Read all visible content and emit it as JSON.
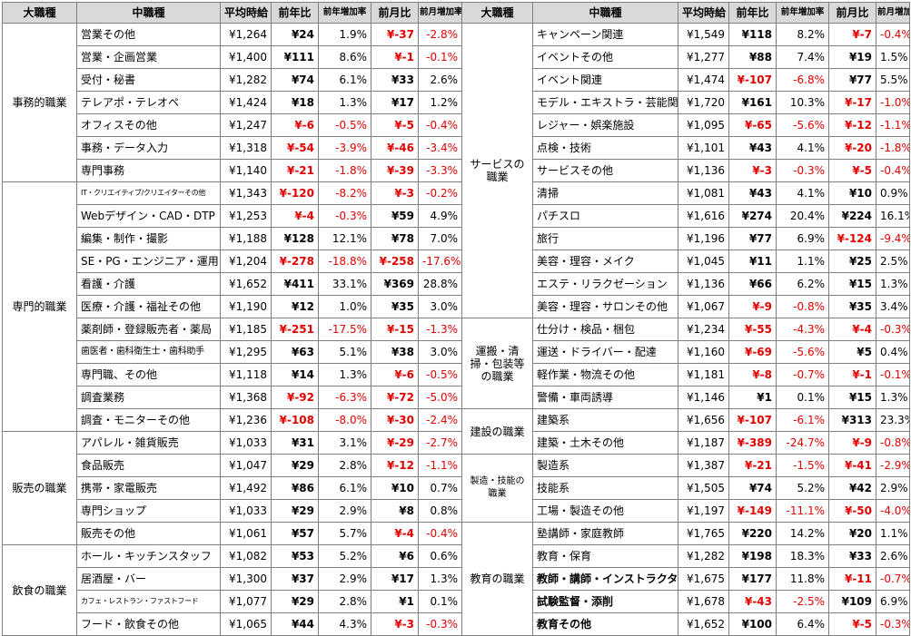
{
  "headers": {
    "major": "大職種",
    "minor": "中職種",
    "avg": "平均時給",
    "yoy": "前年比",
    "yoy_rate": "前年増加率",
    "mom": "前月比",
    "mom_rate": "前月増加率"
  },
  "left_groups": [
    {
      "name": "事務的職業",
      "rows": [
        {
          "sub": "営業その他",
          "avg": "¥1,264",
          "yoy": "¥24",
          "yoy_rate": "1.9%",
          "mom": "¥-37",
          "mom_rate": "-2.8%"
        },
        {
          "sub": "営業・企画営業",
          "avg": "¥1,400",
          "yoy": "¥111",
          "yoy_rate": "8.6%",
          "mom": "¥-1",
          "mom_rate": "-0.1%"
        },
        {
          "sub": "受付・秘書",
          "avg": "¥1,282",
          "yoy": "¥74",
          "yoy_rate": "6.1%",
          "mom": "¥33",
          "mom_rate": "2.6%"
        },
        {
          "sub": "テレアポ・テレオペ",
          "avg": "¥1,424",
          "yoy": "¥18",
          "yoy_rate": "1.3%",
          "mom": "¥17",
          "mom_rate": "1.2%"
        },
        {
          "sub": "オフィスその他",
          "avg": "¥1,247",
          "yoy": "¥-6",
          "yoy_rate": "-0.5%",
          "mom": "¥-5",
          "mom_rate": "-0.4%"
        },
        {
          "sub": "事務・データ入力",
          "avg": "¥1,318",
          "yoy": "¥-54",
          "yoy_rate": "-3.9%",
          "mom": "¥-46",
          "mom_rate": "-3.4%"
        },
        {
          "sub": "専門事務",
          "avg": "¥1,140",
          "yoy": "¥-21",
          "yoy_rate": "-1.8%",
          "mom": "¥-39",
          "mom_rate": "-3.3%"
        }
      ]
    },
    {
      "name": "専門的職業",
      "rows": [
        {
          "sub": "IT・クリエイティブ/クリエイターその他",
          "avg": "¥1,343",
          "yoy": "¥-120",
          "yoy_rate": "-8.2%",
          "mom": "¥-3",
          "mom_rate": "-0.2%"
        },
        {
          "sub": "Webデザイン・CAD・DTP",
          "avg": "¥1,253",
          "yoy": "¥-4",
          "yoy_rate": "-0.3%",
          "mom": "¥59",
          "mom_rate": "4.9%"
        },
        {
          "sub": "編集・制作・撮影",
          "avg": "¥1,188",
          "yoy": "¥128",
          "yoy_rate": "12.1%",
          "mom": "¥78",
          "mom_rate": "7.0%"
        },
        {
          "sub": "SE・PG・エンジニア・運用",
          "avg": "¥1,204",
          "yoy": "¥-278",
          "yoy_rate": "-18.8%",
          "mom": "¥-258",
          "mom_rate": "-17.6%"
        },
        {
          "sub": "看護・介護",
          "avg": "¥1,652",
          "yoy": "¥411",
          "yoy_rate": "33.1%",
          "mom": "¥369",
          "mom_rate": "28.8%"
        },
        {
          "sub": "医療・介護・福祉その他",
          "avg": "¥1,190",
          "yoy": "¥12",
          "yoy_rate": "1.0%",
          "mom": "¥35",
          "mom_rate": "3.0%"
        },
        {
          "sub": "薬剤師・登録販売者・薬局",
          "avg": "¥1,185",
          "yoy": "¥-251",
          "yoy_rate": "-17.5%",
          "mom": "¥-15",
          "mom_rate": "-1.3%"
        },
        {
          "sub": "歯医者・歯科衛生士・歯科助手",
          "avg": "¥1,295",
          "yoy": "¥63",
          "yoy_rate": "5.1%",
          "mom": "¥38",
          "mom_rate": "3.0%"
        },
        {
          "sub": "専門職、その他",
          "avg": "¥1,118",
          "yoy": "¥14",
          "yoy_rate": "1.3%",
          "mom": "¥-6",
          "mom_rate": "-0.5%"
        },
        {
          "sub": "調査業務",
          "avg": "¥1,368",
          "yoy": "¥-92",
          "yoy_rate": "-6.3%",
          "mom": "¥-72",
          "mom_rate": "-5.0%"
        },
        {
          "sub": "調査・モニターその他",
          "avg": "¥1,236",
          "yoy": "¥-108",
          "yoy_rate": "-8.0%",
          "mom": "¥-30",
          "mom_rate": "-2.4%"
        }
      ]
    },
    {
      "name": "販売の職業",
      "rows": [
        {
          "sub": "アパレル・雑貨販売",
          "avg": "¥1,033",
          "yoy": "¥31",
          "yoy_rate": "3.1%",
          "mom": "¥-29",
          "mom_rate": "-2.7%"
        },
        {
          "sub": "食品販売",
          "avg": "¥1,047",
          "yoy": "¥29",
          "yoy_rate": "2.8%",
          "mom": "¥-12",
          "mom_rate": "-1.1%"
        },
        {
          "sub": "携帯・家電販売",
          "avg": "¥1,492",
          "yoy": "¥86",
          "yoy_rate": "6.1%",
          "mom": "¥10",
          "mom_rate": "0.7%"
        },
        {
          "sub": "専門ショップ",
          "avg": "¥1,033",
          "yoy": "¥29",
          "yoy_rate": "2.9%",
          "mom": "¥8",
          "mom_rate": "0.8%"
        },
        {
          "sub": "販売その他",
          "avg": "¥1,061",
          "yoy": "¥57",
          "yoy_rate": "5.7%",
          "mom": "¥-4",
          "mom_rate": "-0.4%"
        }
      ]
    },
    {
      "name": "飲食の職業",
      "rows": [
        {
          "sub": "ホール・キッチンスタッフ",
          "avg": "¥1,082",
          "yoy": "¥53",
          "yoy_rate": "5.2%",
          "mom": "¥6",
          "mom_rate": "0.6%"
        },
        {
          "sub": "居酒屋・バー",
          "avg": "¥1,300",
          "yoy": "¥37",
          "yoy_rate": "2.9%",
          "mom": "¥17",
          "mom_rate": "1.3%"
        },
        {
          "sub": "カフェ・レストラン・ファストフード",
          "avg": "¥1,077",
          "yoy": "¥29",
          "yoy_rate": "2.8%",
          "mom": "¥1",
          "mom_rate": "0.1%"
        },
        {
          "sub": "フード・飲食その他",
          "avg": "¥1,065",
          "yoy": "¥44",
          "yoy_rate": "4.3%",
          "mom": "¥-3",
          "mom_rate": "-0.3%"
        }
      ]
    }
  ],
  "right_groups": [
    {
      "name": "サービスの職業",
      "rows": [
        {
          "sub": "キャンペーン関連",
          "avg": "¥1,549",
          "yoy": "¥118",
          "yoy_rate": "8.2%",
          "mom": "¥-7",
          "mom_rate": "-0.4%"
        },
        {
          "sub": "イベントその他",
          "avg": "¥1,277",
          "yoy": "¥88",
          "yoy_rate": "7.4%",
          "mom": "¥19",
          "mom_rate": "1.5%"
        },
        {
          "sub": "イベント関連",
          "avg": "¥1,474",
          "yoy": "¥-107",
          "yoy_rate": "-6.8%",
          "mom": "¥77",
          "mom_rate": "5.5%"
        },
        {
          "sub": "モデル・エキストラ・芸能関連",
          "avg": "¥1,720",
          "yoy": "¥161",
          "yoy_rate": "10.3%",
          "mom": "¥-17",
          "mom_rate": "-1.0%"
        },
        {
          "sub": "レジャー・娯楽施設",
          "avg": "¥1,095",
          "yoy": "¥-65",
          "yoy_rate": "-5.6%",
          "mom": "¥-12",
          "mom_rate": "-1.1%"
        },
        {
          "sub": "点検・技術",
          "avg": "¥1,101",
          "yoy": "¥43",
          "yoy_rate": "4.1%",
          "mom": "¥-20",
          "mom_rate": "-1.8%"
        },
        {
          "sub": "サービスその他",
          "avg": "¥1,136",
          "yoy": "¥-3",
          "yoy_rate": "-0.3%",
          "mom": "¥-5",
          "mom_rate": "-0.4%"
        },
        {
          "sub": "清掃",
          "avg": "¥1,081",
          "yoy": "¥43",
          "yoy_rate": "4.1%",
          "mom": "¥10",
          "mom_rate": "0.9%"
        },
        {
          "sub": "パチスロ",
          "avg": "¥1,616",
          "yoy": "¥274",
          "yoy_rate": "20.4%",
          "mom": "¥224",
          "mom_rate": "16.1%"
        },
        {
          "sub": "旅行",
          "avg": "¥1,196",
          "yoy": "¥77",
          "yoy_rate": "6.9%",
          "mom": "¥-124",
          "mom_rate": "-9.4%"
        },
        {
          "sub": "美容・理容・メイク",
          "avg": "¥1,045",
          "yoy": "¥11",
          "yoy_rate": "1.1%",
          "mom": "¥25",
          "mom_rate": "2.5%"
        },
        {
          "sub": "エステ・リラクゼーション",
          "avg": "¥1,136",
          "yoy": "¥66",
          "yoy_rate": "6.2%",
          "mom": "¥15",
          "mom_rate": "1.3%"
        },
        {
          "sub": "美容・理容・サロンその他",
          "avg": "¥1,067",
          "yoy": "¥-9",
          "yoy_rate": "-0.8%",
          "mom": "¥35",
          "mom_rate": "3.4%"
        }
      ]
    },
    {
      "name": "運搬・清掃・包装等の職業",
      "rows": [
        {
          "sub": "仕分け・検品・梱包",
          "avg": "¥1,234",
          "yoy": "¥-55",
          "yoy_rate": "-4.3%",
          "mom": "¥-4",
          "mom_rate": "-0.3%"
        },
        {
          "sub": "運送・ドライバー・配達",
          "avg": "¥1,160",
          "yoy": "¥-69",
          "yoy_rate": "-5.6%",
          "mom": "¥5",
          "mom_rate": "0.4%"
        },
        {
          "sub": "軽作業・物流その他",
          "avg": "¥1,181",
          "yoy": "¥-8",
          "yoy_rate": "-0.7%",
          "mom": "¥-1",
          "mom_rate": "-0.1%"
        },
        {
          "sub": "警備・車両誘導",
          "avg": "¥1,146",
          "yoy": "¥1",
          "yoy_rate": "0.1%",
          "mom": "¥15",
          "mom_rate": "1.3%"
        }
      ]
    },
    {
      "name": "建設の職業",
      "rows": [
        {
          "sub": "建築系",
          "avg": "¥1,656",
          "yoy": "¥-107",
          "yoy_rate": "-6.1%",
          "mom": "¥313",
          "mom_rate": "23.3%"
        },
        {
          "sub": "建築・土木その他",
          "avg": "¥1,187",
          "yoy": "¥-389",
          "yoy_rate": "-24.7%",
          "mom": "¥-9",
          "mom_rate": "-0.8%"
        }
      ]
    },
    {
      "name": "製造・技能の職業",
      "rows": [
        {
          "sub": "製造系",
          "avg": "¥1,387",
          "yoy": "¥-21",
          "yoy_rate": "-1.5%",
          "mom": "¥-41",
          "mom_rate": "-2.9%"
        },
        {
          "sub": "技能系",
          "avg": "¥1,505",
          "yoy": "¥74",
          "yoy_rate": "5.2%",
          "mom": "¥42",
          "mom_rate": "2.9%"
        },
        {
          "sub": "工場・製造その他",
          "avg": "¥1,197",
          "yoy": "¥-149",
          "yoy_rate": "-11.1%",
          "mom": "¥-50",
          "mom_rate": "-4.0%"
        }
      ]
    },
    {
      "name": "教育の職業",
      "rows": [
        {
          "sub": "塾講師・家庭教師",
          "avg": "¥1,765",
          "yoy": "¥220",
          "yoy_rate": "14.2%",
          "mom": "¥20",
          "mom_rate": "1.1%"
        },
        {
          "sub": "教育・保育",
          "avg": "¥1,282",
          "yoy": "¥198",
          "yoy_rate": "18.3%",
          "mom": "¥33",
          "mom_rate": "2.6%"
        },
        {
          "sub": "教師・講師・インストラクター",
          "avg": "¥1,675",
          "yoy": "¥177",
          "yoy_rate": "11.8%",
          "mom": "¥-11",
          "mom_rate": "-0.7%"
        },
        {
          "sub": "試験監督・添削",
          "avg": "¥1,678",
          "yoy": "¥-43",
          "yoy_rate": "-2.5%",
          "mom": "¥109",
          "mom_rate": "6.9%"
        },
        {
          "sub": "教育その他",
          "avg": "¥1,652",
          "yoy": "¥100",
          "yoy_rate": "6.4%",
          "mom": "¥-5",
          "mom_rate": "-0.3%"
        }
      ]
    }
  ],
  "colors": {
    "header_bg": "#d9d9d9",
    "negative": "#e00000",
    "border": "#7f7f7f"
  }
}
